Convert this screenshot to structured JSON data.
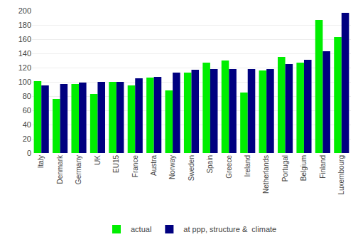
{
  "chart_data": {
    "type": "bar",
    "categories": [
      "Italy",
      "Denmark",
      "Germany",
      "UK",
      "EU15",
      "France",
      "Austra",
      "Norway",
      "Sweden",
      "Spain",
      "Greece",
      "Ireland",
      "Netherlands",
      "Portugal",
      "Belgium",
      "Finland",
      "Luxembourg"
    ],
    "series": [
      {
        "name": "actual",
        "color": "#00ee00",
        "values": [
          101,
          76,
          97,
          83,
          100,
          95,
          106,
          88,
          113,
          127,
          130,
          85,
          116,
          135,
          127,
          187,
          163
        ]
      },
      {
        "name": "at ppp, structure &  climate",
        "color": "#000080",
        "values": [
          95,
          97,
          99,
          100,
          100,
          105,
          107,
          113,
          117,
          118,
          118,
          118,
          118,
          125,
          131,
          143,
          197
        ]
      }
    ],
    "ylim": [
      0,
      200
    ],
    "yticks": [
      0,
      20,
      40,
      60,
      80,
      100,
      120,
      140,
      160,
      180,
      200
    ],
    "grid": true,
    "legend": "bottom"
  }
}
